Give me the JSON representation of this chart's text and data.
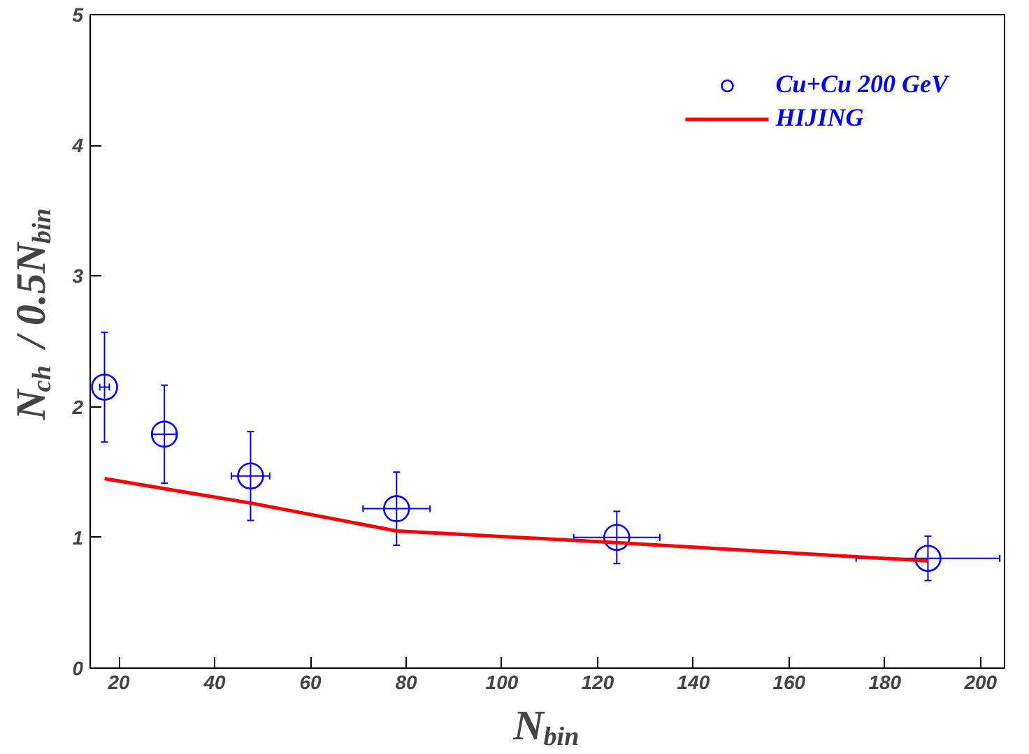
{
  "chart_data": {
    "type": "scatter",
    "xlabel": "N$_{bin}$",
    "ylabel": "N$_{ch}$ / 0.5N$_{bin}$",
    "xlim": [
      14,
      205
    ],
    "ylim": [
      0,
      5
    ],
    "xticks": [
      20,
      40,
      60,
      80,
      100,
      120,
      140,
      160,
      180,
      200
    ],
    "yticks": [
      0,
      1,
      2,
      3,
      4,
      5
    ],
    "grid": false,
    "legend": "top right",
    "series": [
      {
        "name": "Cu+Cu 200 GeV",
        "marker": "circle",
        "color": "#0000ff",
        "x": [
          17,
          29.5,
          47.5,
          78,
          124,
          189
        ],
        "values": [
          2.15,
          1.79,
          1.47,
          1.22,
          1.0,
          0.84
        ],
        "errors": [
          0.42,
          0.375,
          0.34,
          0.28,
          0.2,
          0.17
        ],
        "xerrors": [
          1,
          2.5,
          4,
          7,
          9,
          15
        ]
      },
      {
        "name": "HIJING",
        "type": "line",
        "color": "#ff0000",
        "line_style": "solid",
        "x": [
          17,
          30,
          48,
          78,
          124,
          189
        ],
        "values": [
          1.45,
          1.37,
          1.26,
          1.05,
          0.96,
          0.82
        ]
      }
    ]
  }
}
